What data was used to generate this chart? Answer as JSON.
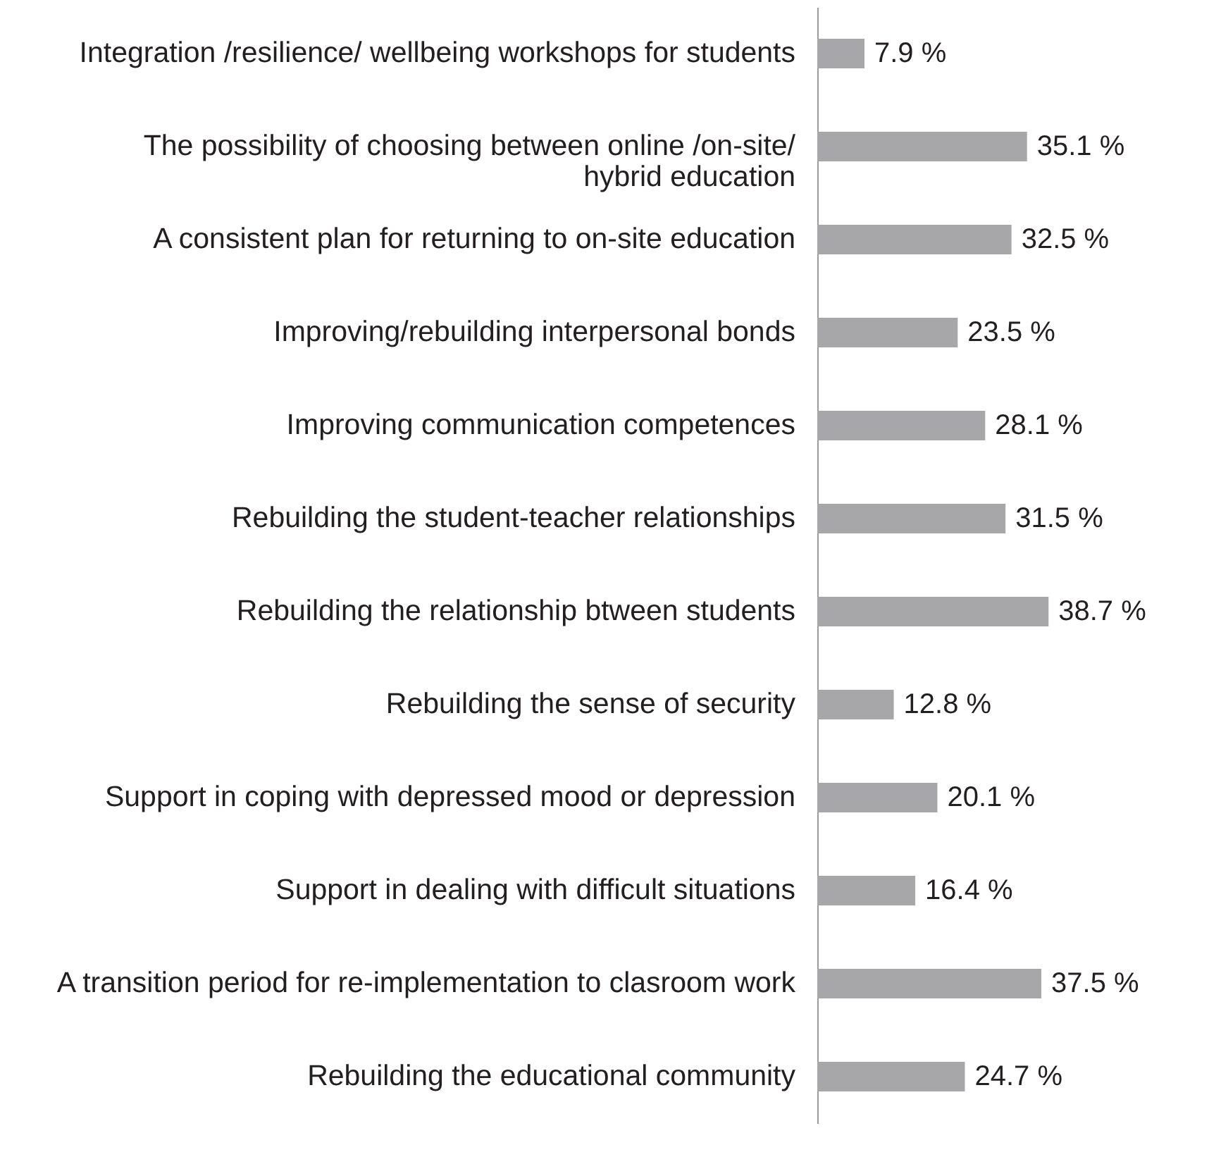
{
  "chart_data": {
    "type": "bar",
    "orientation": "horizontal",
    "color": "#a7a7a9",
    "categories": [
      "Integration /resilience/ wellbeing workshops for students",
      "The possibility of choosing between online /on-site/ hybrid education",
      "A consistent plan for returning to on-site education",
      "Improving/rebuilding interpersonal bonds",
      "Improving communication competences",
      "Rebuilding the student-teacher relationships",
      "Rebuilding the relationship btween students",
      "Rebuilding the sense of security",
      "Support in coping with depressed mood or depression",
      "Support in dealing with difficult situations",
      "A transition period for re-implementation to clasroom work",
      "Rebuilding the educational community"
    ],
    "values": [
      7.9,
      35.1,
      32.5,
      23.5,
      28.1,
      31.5,
      38.7,
      12.8,
      20.1,
      16.4,
      37.5,
      24.7
    ],
    "value_labels": [
      "7.9 %",
      "35.1 %",
      "32.5 %",
      "23.5 %",
      "28.1 %",
      "31.5 %",
      "38.7 %",
      "12.8 %",
      "20.1 %",
      "16.4 %",
      "37.5 %",
      "24.7 %"
    ],
    "grid": false
  }
}
